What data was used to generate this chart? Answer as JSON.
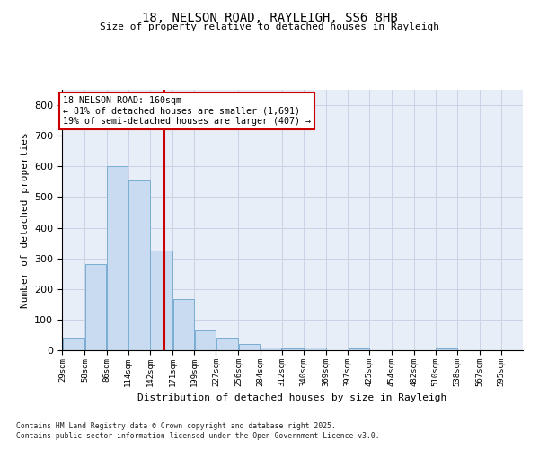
{
  "title_line1": "18, NELSON ROAD, RAYLEIGH, SS6 8HB",
  "title_line2": "Size of property relative to detached houses in Rayleigh",
  "xlabel": "Distribution of detached houses by size in Rayleigh",
  "ylabel": "Number of detached properties",
  "bin_edges": [
    29,
    58,
    86,
    114,
    142,
    171,
    199,
    227,
    256,
    284,
    312,
    340,
    369,
    397,
    425,
    454,
    482,
    510,
    538,
    567,
    595
  ],
  "bar_heights": [
    40,
    280,
    600,
    555,
    325,
    168,
    65,
    40,
    20,
    10,
    5,
    8,
    0,
    5,
    0,
    0,
    0,
    5,
    0,
    0
  ],
  "bar_face_color": "#c9dbf0",
  "bar_edge_color": "#7aadd4",
  "property_sqm": 160,
  "vline_color": "#cc0000",
  "annotation_line1": "18 NELSON ROAD: 160sqm",
  "annotation_line2": "← 81% of detached houses are smaller (1,691)",
  "annotation_line3": "19% of semi-detached houses are larger (407) →",
  "ann_box_facecolor": "#ffffff",
  "ann_box_edgecolor": "#cc0000",
  "grid_color": "#c8d4e6",
  "axes_facecolor": "#e8eef8",
  "ylim": [
    0,
    850
  ],
  "yticks": [
    0,
    100,
    200,
    300,
    400,
    500,
    600,
    700,
    800
  ],
  "tick_labels": [
    "29sqm",
    "58sqm",
    "86sqm",
    "114sqm",
    "142sqm",
    "171sqm",
    "199sqm",
    "227sqm",
    "256sqm",
    "284sqm",
    "312sqm",
    "340sqm",
    "369sqm",
    "397sqm",
    "425sqm",
    "454sqm",
    "482sqm",
    "510sqm",
    "538sqm",
    "567sqm",
    "595sqm"
  ],
  "footer1": "Contains HM Land Registry data © Crown copyright and database right 2025.",
  "footer2": "Contains public sector information licensed under the Open Government Licence v3.0."
}
